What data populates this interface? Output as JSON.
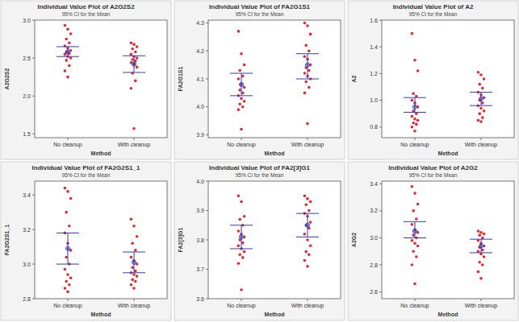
{
  "chart_data": [
    {
      "type": "individual_value",
      "title": "Individual Value Plot of A2G2S2",
      "subtitle": "95% CI for the Mean",
      "x_label": "Method",
      "y_label": "A2G2S2",
      "categories": [
        "No cleanup",
        "With cleanup"
      ],
      "color": "#e8262b",
      "ylim": [
        1.45,
        3.0
      ],
      "yticks": [
        1.5,
        {
          "value": 2,
          "label": "2.0"
        },
        2.5,
        {
          "value": 3,
          "label": "3.0"
        }
      ],
      "values": [
        [
          2.93,
          2.88,
          2.82,
          2.75,
          2.7,
          2.66,
          2.63,
          2.6,
          2.58,
          2.56,
          2.55,
          2.52,
          2.5,
          2.47,
          2.4,
          2.33,
          2.25
        ],
        [
          2.7,
          2.68,
          2.65,
          2.62,
          2.58,
          2.55,
          2.52,
          2.5,
          2.48,
          2.46,
          2.44,
          2.42,
          2.38,
          2.3,
          2.2,
          2.1,
          1.57
        ]
      ],
      "means": [
        2.58,
        2.42
      ],
      "ci_lower": [
        2.52,
        2.31
      ],
      "ci_upper": [
        2.65,
        2.53
      ]
    },
    {
      "type": "individual_value",
      "title": "Individual Value Plot of FA2G1S1",
      "subtitle": "95% CI for the Mean",
      "x_label": "Method",
      "y_label": "FA2G1S1",
      "categories": [
        "No cleanup",
        "With cleanup"
      ],
      "color": "#e8262b",
      "ylim": [
        3.89,
        4.31
      ],
      "yticks": [
        3.9,
        {
          "value": 4,
          "label": "4.0"
        },
        4.1,
        4.2,
        4.3
      ],
      "values": [
        [
          4.27,
          4.19,
          4.15,
          4.13,
          4.11,
          4.1,
          4.08,
          4.07,
          4.06,
          4.05,
          4.04,
          4.03,
          4.02,
          4.01,
          4.0,
          3.99,
          3.92
        ],
        [
          4.3,
          4.29,
          4.26,
          4.22,
          4.2,
          4.18,
          4.17,
          4.15,
          4.14,
          4.13,
          4.12,
          4.11,
          4.1,
          4.09,
          4.07,
          4.05,
          3.94
        ]
      ],
      "means": [
        4.08,
        4.15
      ],
      "ci_lower": [
        4.04,
        4.1
      ],
      "ci_upper": [
        4.12,
        4.19
      ]
    },
    {
      "type": "individual_value",
      "title": "Individual Value Plot of A2",
      "subtitle": "95% CI for the Mean",
      "x_label": "Method",
      "y_label": "A2",
      "categories": [
        "No cleanup",
        "With cleanup"
      ],
      "color": "#e8262b",
      "ylim": [
        0.72,
        1.6
      ],
      "yticks": [
        0.8,
        {
          "value": 1,
          "label": "1.0"
        },
        1.2,
        1.4,
        1.6
      ],
      "values": [
        [
          1.5,
          1.3,
          1.22,
          1.05,
          1.03,
          1.0,
          0.98,
          0.95,
          0.92,
          0.9,
          0.88,
          0.86,
          0.85,
          0.83,
          0.82,
          0.8,
          0.77
        ],
        [
          1.21,
          1.19,
          1.16,
          1.12,
          1.09,
          1.06,
          1.04,
          1.02,
          1.0,
          0.98,
          0.96,
          0.94,
          0.92,
          0.9,
          0.87,
          0.85,
          0.84
        ]
      ],
      "means": [
        0.95,
        1.01
      ],
      "ci_lower": [
        0.91,
        0.96
      ],
      "ci_upper": [
        1.02,
        1.06
      ]
    },
    {
      "type": "individual_value",
      "title": "Individual Value Plot of FA2G2S1_1",
      "subtitle": "95% CI for the Mean",
      "x_label": "Method",
      "y_label": "FA2G2S1_1",
      "categories": [
        "No cleanup",
        "With cleanup"
      ],
      "color": "#e8262b",
      "ylim": [
        2.8,
        3.48
      ],
      "yticks": [
        2.8,
        {
          "value": 3,
          "label": "3.0"
        },
        3.2,
        3.4
      ],
      "values": [
        [
          3.44,
          3.42,
          3.38,
          3.3,
          3.22,
          3.18,
          3.12,
          3.08,
          3.04,
          3.0,
          2.97,
          2.94,
          2.92,
          2.9,
          2.88,
          2.86,
          2.84
        ],
        [
          3.26,
          3.22,
          3.16,
          3.12,
          3.08,
          3.04,
          3.02,
          3.0,
          2.98,
          2.96,
          2.95,
          2.94,
          2.93,
          2.91,
          2.9,
          2.88,
          2.86
        ]
      ],
      "means": [
        3.09,
        3.01
      ],
      "ci_lower": [
        3.0,
        2.95
      ],
      "ci_upper": [
        3.18,
        3.07
      ]
    },
    {
      "type": "individual_value",
      "title": "Individual Value Plot of FA2[3]G1",
      "subtitle": "95% CI for the Mean",
      "x_label": "Method",
      "y_label": "FA2[3]G1",
      "categories": [
        "No cleanup",
        "With cleanup"
      ],
      "color": "#e8262b",
      "ylim": [
        3.6,
        4.0
      ],
      "yticks": [
        3.6,
        3.7,
        3.8,
        3.9,
        {
          "value": 4,
          "label": "4.0"
        }
      ],
      "values": [
        [
          3.95,
          3.93,
          3.88,
          3.87,
          3.85,
          3.83,
          3.82,
          3.81,
          3.8,
          3.79,
          3.78,
          3.77,
          3.76,
          3.75,
          3.74,
          3.72,
          3.63
        ],
        [
          3.95,
          3.94,
          3.93,
          3.92,
          3.9,
          3.89,
          3.88,
          3.86,
          3.85,
          3.84,
          3.82,
          3.8,
          3.78,
          3.76,
          3.75,
          3.73,
          3.71
        ]
      ],
      "means": [
        3.81,
        3.85
      ],
      "ci_lower": [
        3.77,
        3.81
      ],
      "ci_upper": [
        3.85,
        3.89
      ]
    },
    {
      "type": "individual_value",
      "title": "Individual Value Plot of A2G2",
      "subtitle": "95% CI for the Mean",
      "x_label": "Method",
      "y_label": "A2G2",
      "categories": [
        "No cleanup",
        "With cleanup"
      ],
      "color": "#e8262b",
      "ylim": [
        2.55,
        3.42
      ],
      "yticks": [
        2.6,
        2.8,
        {
          "value": 3,
          "label": "3.0"
        },
        3.2,
        3.4
      ],
      "values": [
        [
          3.38,
          3.33,
          3.25,
          3.2,
          3.14,
          3.1,
          3.06,
          3.04,
          3.02,
          3.0,
          2.98,
          2.96,
          2.94,
          2.9,
          2.86,
          2.8,
          2.66
        ],
        [
          3.05,
          3.04,
          3.03,
          3.02,
          3.0,
          2.98,
          2.96,
          2.94,
          2.93,
          2.91,
          2.9,
          2.88,
          2.86,
          2.82,
          2.8,
          2.75,
          2.7
        ]
      ],
      "means": [
        3.05,
        2.94
      ],
      "ci_lower": [
        3.0,
        2.89
      ],
      "ci_upper": [
        3.12,
        2.99
      ]
    }
  ]
}
